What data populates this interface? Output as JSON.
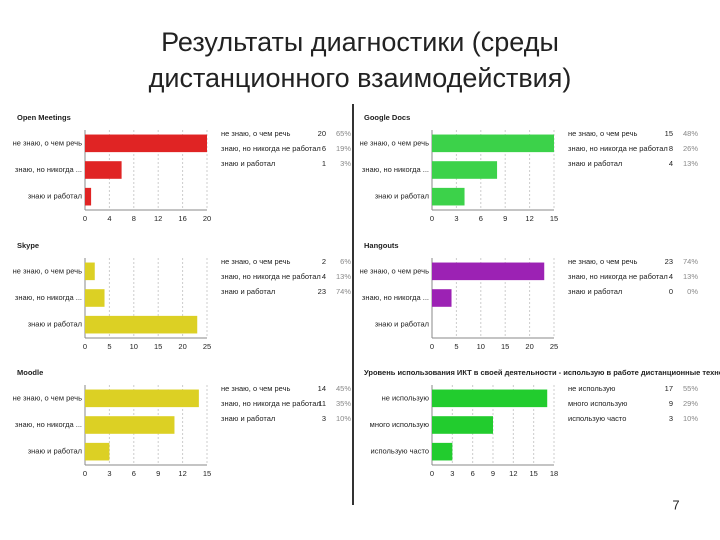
{
  "title_lines": [
    "Результаты диагностики (среды",
    "дистанционного взаимодействия)"
  ],
  "page_number": "7",
  "chart_data": [
    {
      "type": "hbar",
      "title": "Open Meetings",
      "categories": [
        "не знаю, о чем речь",
        "знаю, но никогда ...",
        "знаю и работал"
      ],
      "values": [
        20,
        6,
        1
      ],
      "color": "#e02424",
      "xlim": [
        0,
        20
      ],
      "xticks": [
        0,
        4,
        8,
        12,
        16,
        20
      ],
      "grid": true,
      "table_rows": [
        [
          "не знаю, о чем речь",
          "20",
          "65%"
        ],
        [
          "знаю, но никогда не работал",
          "6",
          "19%"
        ],
        [
          "знаю и работал",
          "1",
          "3%"
        ]
      ]
    },
    {
      "type": "hbar",
      "title": "Google Docs",
      "categories": [
        "не знаю, о чем речь",
        "знаю, но никогда ...",
        "знаю и работал"
      ],
      "values": [
        15,
        8,
        4
      ],
      "color": "#3cd24a",
      "xlim": [
        0,
        15
      ],
      "xticks": [
        0,
        3,
        6,
        9,
        12,
        15
      ],
      "grid": true,
      "table_rows": [
        [
          "не знаю, о чем речь",
          "15",
          "48%"
        ],
        [
          "знаю, но никогда не работал",
          "8",
          "26%"
        ],
        [
          "знаю и работал",
          "4",
          "13%"
        ]
      ]
    },
    {
      "type": "hbar",
      "title": "Skype",
      "categories": [
        "не знаю, о чем речь",
        "знаю, но никогда ...",
        "знаю и работал"
      ],
      "values": [
        2,
        4,
        23
      ],
      "color": "#dcd024",
      "xlim": [
        0,
        25
      ],
      "xticks": [
        0,
        5,
        10,
        15,
        20,
        25
      ],
      "grid": true,
      "table_rows": [
        [
          "не знаю, о чем речь",
          "2",
          "6%"
        ],
        [
          "знаю, но никогда не работал",
          "4",
          "13%"
        ],
        [
          "знаю и работал",
          "23",
          "74%"
        ]
      ]
    },
    {
      "type": "hbar",
      "title": "Hangouts",
      "categories": [
        "не знаю, о чем речь",
        "знаю, но никогда ...",
        "знаю и работал"
      ],
      "values": [
        23,
        4,
        0
      ],
      "color": "#9c22b4",
      "xlim": [
        0,
        25
      ],
      "xticks": [
        0,
        5,
        10,
        15,
        20,
        25
      ],
      "grid": true,
      "table_rows": [
        [
          "не знаю, о чем речь",
          "23",
          "74%"
        ],
        [
          "знаю, но никогда не работал",
          "4",
          "13%"
        ],
        [
          "знаю и работал",
          "0",
          "0%"
        ]
      ]
    },
    {
      "type": "hbar",
      "title": "Moodle",
      "categories": [
        "не знаю, о чем речь",
        "знаю, но никогда ...",
        "знаю и работал"
      ],
      "values": [
        14,
        11,
        3
      ],
      "color": "#dcd024",
      "xlim": [
        0,
        15
      ],
      "xticks": [
        0,
        3,
        6,
        9,
        12,
        15
      ],
      "grid": true,
      "table_rows": [
        [
          "не знаю, о чем речь",
          "14",
          "45%"
        ],
        [
          "знаю, но никогда не работал",
          "11",
          "35%"
        ],
        [
          "знаю и работал",
          "3",
          "10%"
        ]
      ]
    },
    {
      "type": "hbar",
      "title": "Уровень использования ИКТ в своей деятельности - использую в работе дистанционные технологии",
      "categories": [
        "не использую",
        "много использую",
        "использую часто"
      ],
      "values": [
        17,
        9,
        3
      ],
      "color": "#22cc2e",
      "xlim": [
        0,
        18
      ],
      "xticks": [
        0,
        3,
        6,
        9,
        12,
        15,
        18
      ],
      "grid": true,
      "table_rows": [
        [
          "не использую",
          "17",
          "55%"
        ],
        [
          "много использую",
          "9",
          "29%"
        ],
        [
          "использую часто",
          "3",
          "10%"
        ]
      ]
    }
  ]
}
